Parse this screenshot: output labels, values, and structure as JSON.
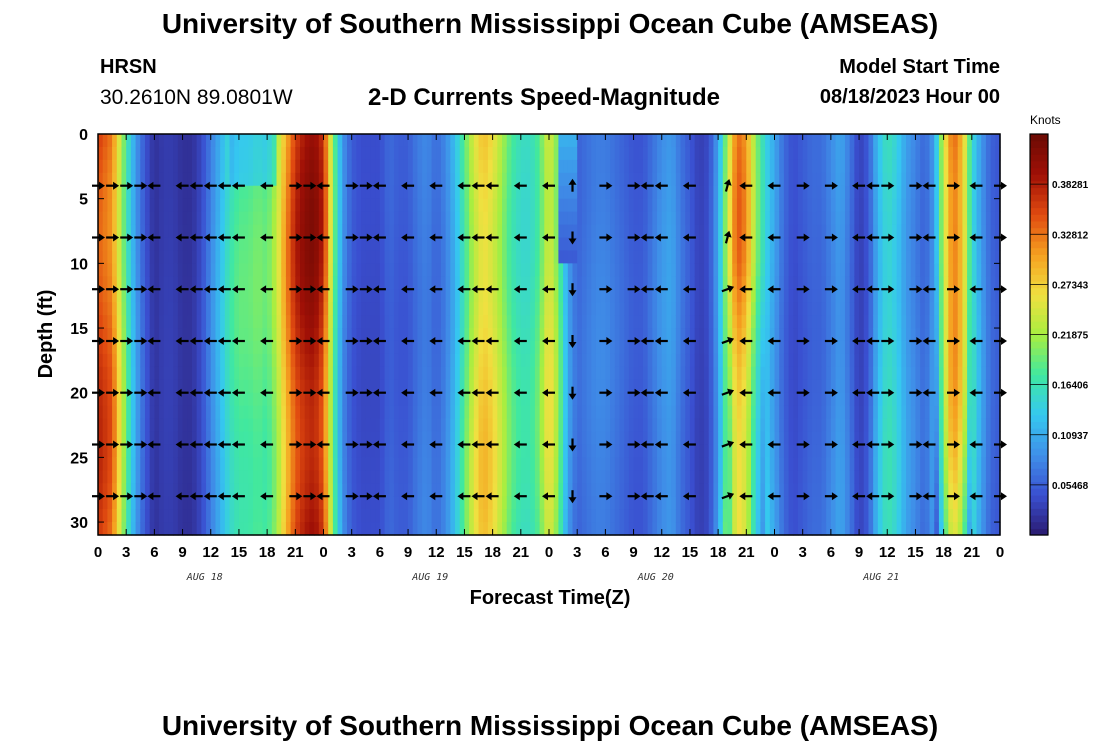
{
  "page": {
    "title": "University of Southern Mississippi Ocean Cube (AMSEAS)",
    "station": "HRSN",
    "coords": "30.2610N  89.0801W",
    "subtitle": "2-D Currents Speed-Magnitude",
    "model_start_label": "Model Start Time",
    "model_start_value": "08/18/2023 Hour 00",
    "units": "Knots",
    "repeated_title": "University of Southern Mississippi Ocean Cube (AMSEAS)"
  },
  "colors": {
    "scale": [
      "#2a1a6e",
      "#3a4fd0",
      "#3f8fe8",
      "#35c8f0",
      "#40e8a0",
      "#a8ee40",
      "#f0e040",
      "#f5a020",
      "#e04a10",
      "#a01006",
      "#6a0a04"
    ]
  },
  "chart_data": {
    "type": "heatmap",
    "xlabel": "Forecast Time(Z)",
    "ylabel": "Depth (ft)",
    "xlim": [
      0,
      96
    ],
    "ylim": [
      31,
      0
    ],
    "x_ticks": [
      0,
      3,
      6,
      9,
      12,
      15,
      18,
      21,
      24,
      27,
      30,
      33,
      36,
      39,
      42,
      45,
      48,
      51,
      54,
      57,
      60,
      63,
      66,
      69,
      72,
      75,
      78,
      81,
      84,
      87,
      90,
      93,
      96
    ],
    "x_tick_labels": [
      "0",
      "3",
      "6",
      "9",
      "12",
      "15",
      "18",
      "21",
      "0",
      "3",
      "6",
      "9",
      "12",
      "15",
      "18",
      "21",
      "0",
      "3",
      "6",
      "9",
      "12",
      "15",
      "18",
      "21",
      "0",
      "3",
      "6",
      "9",
      "12",
      "15",
      "18",
      "21",
      "0"
    ],
    "y_ticks": [
      0,
      5,
      10,
      15,
      20,
      25,
      30
    ],
    "day_labels": [
      {
        "label": "AUG 18",
        "hour": 12
      },
      {
        "label": "AUG 19",
        "hour": 36
      },
      {
        "label": "AUG 20",
        "hour": 60
      },
      {
        "label": "AUG 21",
        "hour": 84
      }
    ],
    "colorbar": {
      "label": "Knots",
      "min": 0,
      "max": 0.4375,
      "tick_values": [
        0.05468,
        0.10937,
        0.16406,
        0.21875,
        0.27343,
        0.32812,
        0.38281
      ],
      "tick_labels": [
        "0.05468",
        "0.10937",
        "0.16406",
        "0.21875",
        "0.27343",
        "0.32812",
        "0.38281"
      ]
    },
    "surface_speed_by_hour": [
      [
        0,
        0.36
      ],
      [
        1.5,
        0.33
      ],
      [
        3,
        0.18
      ],
      [
        4,
        0.1
      ],
      [
        5,
        0.05
      ],
      [
        6,
        0.02
      ],
      [
        7,
        0.03
      ],
      [
        8,
        0.03
      ],
      [
        9,
        0.02
      ],
      [
        10,
        0.02
      ],
      [
        11,
        0.04
      ],
      [
        12,
        0.08
      ],
      [
        13,
        0.12
      ],
      [
        14,
        0.16
      ],
      [
        15,
        0.18
      ],
      [
        16,
        0.18
      ],
      [
        17,
        0.19
      ],
      [
        18,
        0.18
      ],
      [
        19,
        0.22
      ],
      [
        20,
        0.3
      ],
      [
        21,
        0.36
      ],
      [
        22,
        0.39
      ],
      [
        23,
        0.4
      ],
      [
        24,
        0.36
      ],
      [
        25,
        0.2
      ],
      [
        26,
        0.09
      ],
      [
        27,
        0.05
      ],
      [
        28,
        0.04
      ],
      [
        29,
        0.04
      ],
      [
        30,
        0.04
      ],
      [
        31,
        0.06
      ],
      [
        32,
        0.05
      ],
      [
        33,
        0.05
      ],
      [
        34,
        0.07
      ],
      [
        35,
        0.08
      ],
      [
        36,
        0.06
      ],
      [
        37,
        0.08
      ],
      [
        38,
        0.12
      ],
      [
        39,
        0.18
      ],
      [
        40,
        0.24
      ],
      [
        41,
        0.28
      ],
      [
        42,
        0.26
      ],
      [
        43,
        0.22
      ],
      [
        44,
        0.18
      ],
      [
        45,
        0.16
      ],
      [
        46,
        0.16
      ],
      [
        47,
        0.19
      ],
      [
        48,
        0.26
      ],
      [
        49,
        0.2
      ],
      [
        50,
        0.1
      ],
      [
        51,
        0.06
      ],
      [
        52,
        0.07
      ],
      [
        53,
        0.08
      ],
      [
        54,
        0.08
      ],
      [
        55,
        0.07
      ],
      [
        56,
        0.06
      ],
      [
        57,
        0.05
      ],
      [
        58,
        0.05
      ],
      [
        59,
        0.07
      ],
      [
        60,
        0.09
      ],
      [
        61,
        0.1
      ],
      [
        62,
        0.07
      ],
      [
        63,
        0.05
      ],
      [
        64,
        0.03
      ],
      [
        65,
        0.04
      ],
      [
        66,
        0.1
      ],
      [
        67,
        0.22
      ],
      [
        68,
        0.33
      ],
      [
        69,
        0.3
      ],
      [
        70,
        0.2
      ],
      [
        71,
        0.14
      ],
      [
        72,
        0.1
      ],
      [
        73,
        0.06
      ],
      [
        74,
        0.04
      ],
      [
        75,
        0.05
      ],
      [
        76,
        0.06
      ],
      [
        77,
        0.06
      ],
      [
        78,
        0.08
      ],
      [
        79,
        0.1
      ],
      [
        80,
        0.07
      ],
      [
        81,
        0.03
      ],
      [
        82,
        0.05
      ],
      [
        83,
        0.12
      ],
      [
        84,
        0.16
      ],
      [
        85,
        0.14
      ],
      [
        86,
        0.1
      ],
      [
        87,
        0.08
      ],
      [
        88,
        0.06
      ],
      [
        89,
        0.1
      ],
      [
        90,
        0.25
      ],
      [
        91,
        0.35
      ],
      [
        92,
        0.3
      ],
      [
        93,
        0.16
      ],
      [
        94,
        0.1
      ],
      [
        95,
        0.06
      ],
      [
        96,
        0.05
      ]
    ],
    "vector_depths_ft": [
      4,
      8,
      12,
      16,
      20,
      24,
      28
    ],
    "vector_hours": [
      0,
      1.5,
      3,
      4.5,
      6,
      9,
      10.5,
      12,
      13.5,
      15,
      18,
      21,
      22.5,
      24,
      27,
      28.5,
      30,
      33,
      36,
      39,
      40.5,
      42,
      45,
      48,
      50.5,
      54,
      57,
      58.5,
      60,
      63,
      67,
      69,
      72,
      75,
      78,
      81,
      82.5,
      84,
      87,
      88.5,
      91,
      93.5,
      96
    ],
    "vector_direction_deg_by_hour": [
      0,
      0,
      0,
      0,
      180,
      180,
      180,
      180,
      180,
      180,
      180,
      0,
      0,
      180,
      0,
      0,
      180,
      180,
      180,
      180,
      180,
      180,
      180,
      180,
      90,
      0,
      0,
      180,
      180,
      180,
      10,
      180,
      180,
      0,
      0,
      180,
      180,
      0,
      0,
      180,
      0,
      180,
      0
    ]
  }
}
